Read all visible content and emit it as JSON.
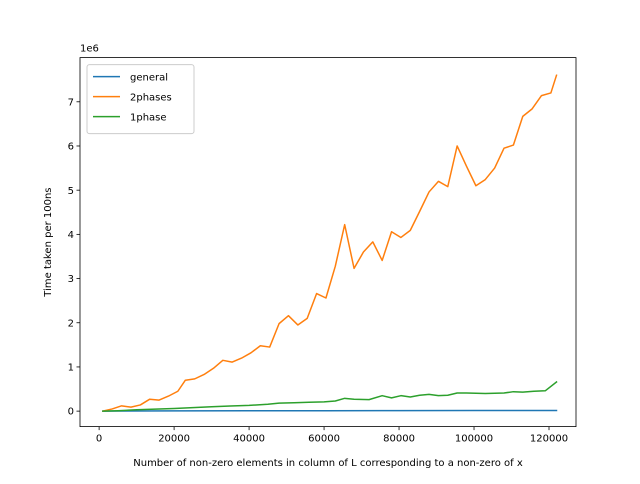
{
  "chart_data": {
    "type": "line",
    "title": "",
    "xlabel": "Number of non-zero elements in column of L corresponding to a non-zero of x",
    "ylabel": "Time taken per 100ns",
    "y_offset_text": "1e6",
    "xlim": [
      -5100,
      127200
    ],
    "ylim": [
      -350000,
      8000000
    ],
    "y_scale_factor": 1000000,
    "xticks": [
      0,
      20000,
      40000,
      60000,
      80000,
      100000,
      120000
    ],
    "xtick_labels": [
      "0",
      "20000",
      "40000",
      "60000",
      "80000",
      "100000",
      "120000"
    ],
    "yticks": [
      0,
      1000000,
      2000000,
      3000000,
      4000000,
      5000000,
      6000000,
      7000000
    ],
    "ytick_labels": [
      "0",
      "1",
      "2",
      "3",
      "4",
      "5",
      "6",
      "7"
    ],
    "grid": false,
    "legend_position": "upper-left",
    "series": [
      {
        "name": "general",
        "color": "#1f77b4",
        "points": [
          [
            1000,
            0
          ],
          [
            20000,
            5000
          ],
          [
            40000,
            8000
          ],
          [
            60000,
            10000
          ],
          [
            80000,
            12000
          ],
          [
            100000,
            14000
          ],
          [
            122000,
            15000
          ]
        ]
      },
      {
        "name": "2phases",
        "color": "#ff7f0e",
        "points": [
          [
            1000,
            0
          ],
          [
            3500,
            50000
          ],
          [
            6000,
            120000
          ],
          [
            8500,
            90000
          ],
          [
            11000,
            140000
          ],
          [
            13500,
            270000
          ],
          [
            16000,
            250000
          ],
          [
            18500,
            340000
          ],
          [
            21000,
            450000
          ],
          [
            23000,
            700000
          ],
          [
            25500,
            730000
          ],
          [
            28000,
            830000
          ],
          [
            30500,
            970000
          ],
          [
            33000,
            1150000
          ],
          [
            35500,
            1110000
          ],
          [
            38000,
            1200000
          ],
          [
            40500,
            1320000
          ],
          [
            43000,
            1480000
          ],
          [
            45500,
            1450000
          ],
          [
            48000,
            1980000
          ],
          [
            50500,
            2160000
          ],
          [
            53000,
            1950000
          ],
          [
            55500,
            2100000
          ],
          [
            58000,
            2660000
          ],
          [
            60500,
            2560000
          ],
          [
            63000,
            3280000
          ],
          [
            65500,
            4220000
          ],
          [
            68000,
            3230000
          ],
          [
            70500,
            3600000
          ],
          [
            73000,
            3830000
          ],
          [
            75500,
            3410000
          ],
          [
            78000,
            4060000
          ],
          [
            80500,
            3930000
          ],
          [
            83000,
            4090000
          ],
          [
            85500,
            4520000
          ],
          [
            88000,
            4960000
          ],
          [
            90500,
            5200000
          ],
          [
            93000,
            5080000
          ],
          [
            95500,
            6000000
          ],
          [
            98000,
            5540000
          ],
          [
            100500,
            5100000
          ],
          [
            103000,
            5240000
          ],
          [
            105500,
            5500000
          ],
          [
            108000,
            5950000
          ],
          [
            110500,
            6020000
          ],
          [
            113000,
            6670000
          ],
          [
            115500,
            6840000
          ],
          [
            118000,
            7140000
          ],
          [
            120500,
            7200000
          ],
          [
            122000,
            7600000
          ]
        ]
      },
      {
        "name": "1phase",
        "color": "#2ca02c",
        "points": [
          [
            1000,
            0
          ],
          [
            5000,
            10000
          ],
          [
            10000,
            30000
          ],
          [
            15000,
            45000
          ],
          [
            20000,
            60000
          ],
          [
            25000,
            80000
          ],
          [
            30000,
            100000
          ],
          [
            35000,
            115000
          ],
          [
            40000,
            130000
          ],
          [
            45000,
            155000
          ],
          [
            48000,
            180000
          ],
          [
            52000,
            190000
          ],
          [
            56000,
            200000
          ],
          [
            60000,
            210000
          ],
          [
            63000,
            230000
          ],
          [
            65500,
            290000
          ],
          [
            68000,
            270000
          ],
          [
            72000,
            260000
          ],
          [
            75500,
            350000
          ],
          [
            78000,
            300000
          ],
          [
            80500,
            350000
          ],
          [
            83000,
            320000
          ],
          [
            85500,
            360000
          ],
          [
            88000,
            380000
          ],
          [
            90500,
            350000
          ],
          [
            93000,
            360000
          ],
          [
            95500,
            410000
          ],
          [
            98000,
            410000
          ],
          [
            103000,
            400000
          ],
          [
            108000,
            410000
          ],
          [
            110500,
            440000
          ],
          [
            113000,
            430000
          ],
          [
            116000,
            450000
          ],
          [
            119000,
            460000
          ],
          [
            122000,
            660000
          ]
        ]
      }
    ]
  }
}
